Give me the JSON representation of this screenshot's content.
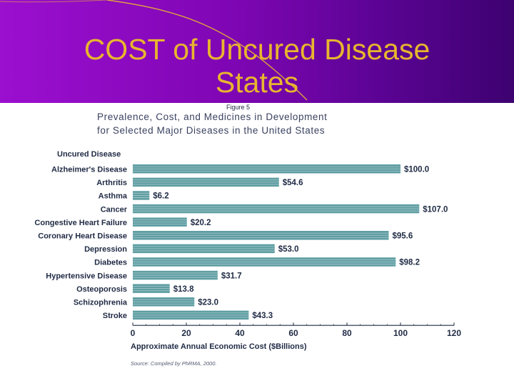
{
  "slide": {
    "title": "COST of Uncured Disease States",
    "colors": {
      "header_start": "#9b0fcf",
      "header_end": "#3d0270",
      "title": "#e8b52e"
    }
  },
  "figure": {
    "caption": "Figure 5",
    "title_line1": "Prevalence, Cost, and Medicines in Development",
    "title_line2": "for Selected Major Diseases in the United States",
    "source": "Source: Compiled by PhRMA, 2000."
  },
  "chart_data": {
    "type": "bar",
    "orientation": "horizontal",
    "category_header": "Uncured Disease",
    "categories": [
      "Alzheimer's Disease",
      "Arthritis",
      "Asthma",
      "Cancer",
      "Congestive Heart Failure",
      "Coronary Heart Disease",
      "Depression",
      "Diabetes",
      "Hypertensive Disease",
      "Osteoporosis",
      "Schizophrenia",
      "Stroke"
    ],
    "values": [
      100.0,
      54.6,
      6.2,
      107.0,
      20.2,
      95.6,
      53.0,
      98.2,
      31.7,
      13.8,
      23.0,
      43.3
    ],
    "value_labels": [
      "$100.0",
      "$54.6",
      "$6.2",
      "$107.0",
      "$20.2",
      "$95.6",
      "$53.0",
      "$98.2",
      "$31.7",
      "$13.8",
      "$23.0",
      "$43.3"
    ],
    "xlabel": "Approximate Annual Economic Cost ($Billions)",
    "xlim": [
      0,
      120
    ],
    "xticks": [
      0,
      20,
      40,
      60,
      80,
      100,
      120
    ],
    "bar_color": "#5f9ea3",
    "text_color": "#1f2a44"
  }
}
